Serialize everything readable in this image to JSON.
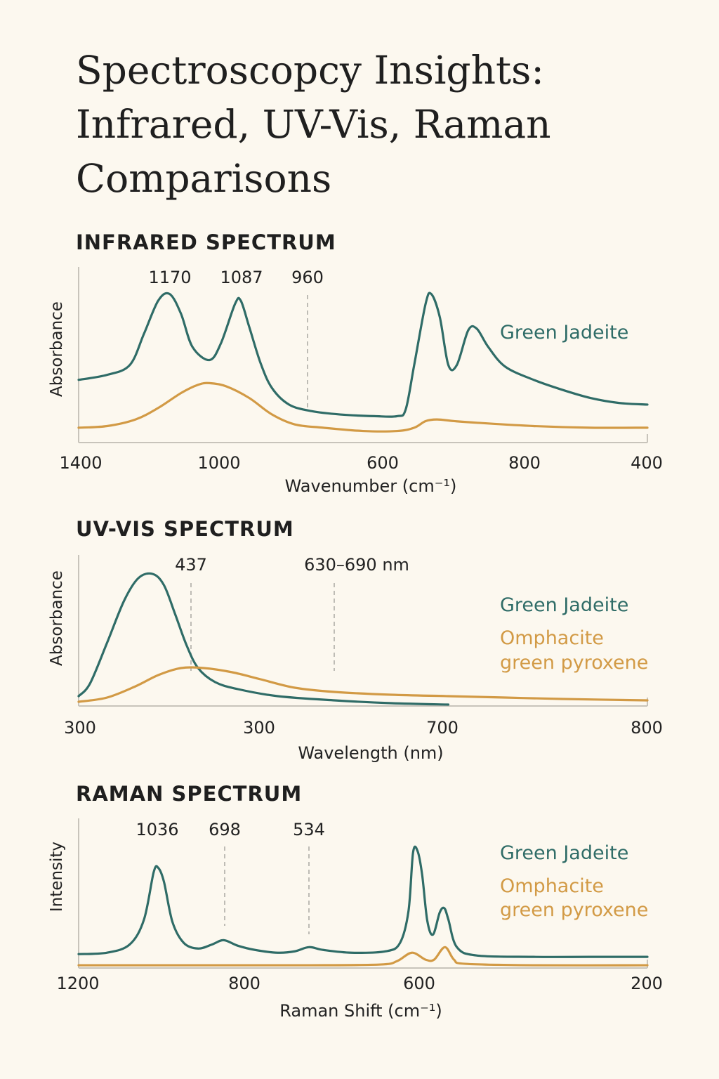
{
  "title_lines": [
    "Spectroscopcy Insights:",
    "Infrared, UV-Vis, Raman",
    "Comparisons"
  ],
  "colors": {
    "background": "#fcf8ef",
    "jadeite": "#2f6c67",
    "omphacite": "#d29a45",
    "axis": "#c8c4bb",
    "guide": "#a9a7a2"
  },
  "chart_data": [
    {
      "type": "line",
      "title": "INFRARED SPECTRUM",
      "xlabel": "Wavenumber (cm⁻¹)",
      "ylabel": "Absorbance",
      "x_tick_labels": [
        "1400",
        "1000",
        "600",
        "800",
        "400"
      ],
      "xlim": [
        0,
        100
      ],
      "ylim": [
        0,
        1
      ],
      "peak_labels": [
        {
          "label": "1170",
          "x": 16.0
        },
        {
          "label": "1087",
          "x": 28.5
        },
        {
          "label": "960",
          "x": 40.5
        }
      ],
      "series": [
        {
          "name": "Green Jadeite",
          "color": "#2f6c67",
          "points": [
            [
              0,
              0.38
            ],
            [
              5,
              0.41
            ],
            [
              9,
              0.47
            ],
            [
              11.5,
              0.66
            ],
            [
              14,
              0.86
            ],
            [
              16,
              0.9
            ],
            [
              18,
              0.78
            ],
            [
              20,
              0.58
            ],
            [
              23,
              0.5
            ],
            [
              25,
              0.6
            ],
            [
              27.5,
              0.84
            ],
            [
              28.5,
              0.86
            ],
            [
              30,
              0.7
            ],
            [
              32,
              0.48
            ],
            [
              34,
              0.33
            ],
            [
              37,
              0.23
            ],
            [
              41,
              0.19
            ],
            [
              46,
              0.17
            ],
            [
              52,
              0.16
            ],
            [
              56,
              0.16
            ],
            [
              57.5,
              0.2
            ],
            [
              59,
              0.47
            ],
            [
              61,
              0.84
            ],
            [
              62,
              0.9
            ],
            [
              63.5,
              0.76
            ],
            [
              65,
              0.47
            ],
            [
              66.5,
              0.47
            ],
            [
              68.5,
              0.68
            ],
            [
              70,
              0.69
            ],
            [
              72,
              0.58
            ],
            [
              75,
              0.46
            ],
            [
              80,
              0.38
            ],
            [
              85,
              0.32
            ],
            [
              90,
              0.27
            ],
            [
              95,
              0.24
            ],
            [
              100,
              0.23
            ]
          ]
        },
        {
          "name": "Omphacite",
          "color": "#d29a45",
          "points": [
            [
              0,
              0.09
            ],
            [
              5,
              0.1
            ],
            [
              10,
              0.14
            ],
            [
              14,
              0.21
            ],
            [
              18,
              0.3
            ],
            [
              21,
              0.35
            ],
            [
              23,
              0.36
            ],
            [
              26,
              0.34
            ],
            [
              30,
              0.27
            ],
            [
              34,
              0.17
            ],
            [
              38,
              0.11
            ],
            [
              43,
              0.09
            ],
            [
              50,
              0.07
            ],
            [
              56,
              0.07
            ],
            [
              59,
              0.09
            ],
            [
              61,
              0.13
            ],
            [
              63,
              0.14
            ],
            [
              66,
              0.13
            ],
            [
              70,
              0.12
            ],
            [
              80,
              0.1
            ],
            [
              90,
              0.09
            ],
            [
              100,
              0.09
            ]
          ]
        }
      ],
      "legend": [
        "Green Jadeite"
      ]
    },
    {
      "type": "line",
      "title": "UV-VIS SPECTRUM",
      "xlabel": "Wavelength (nm)",
      "ylabel": "Absorbance",
      "x_tick_labels": [
        "300",
        "300",
        "700",
        "800"
      ],
      "xlim": [
        0,
        100
      ],
      "ylim": [
        0,
        1
      ],
      "peak_labels": [
        {
          "label": "437",
          "x": 20.0
        },
        {
          "label": "630–690 nm",
          "x": 45.0
        }
      ],
      "series": [
        {
          "name": "Green Jadeite",
          "color": "#2f6c67",
          "points": [
            [
              0,
              0.07
            ],
            [
              2,
              0.16
            ],
            [
              5,
              0.45
            ],
            [
              8,
              0.75
            ],
            [
              10.5,
              0.91
            ],
            [
              13,
              0.94
            ],
            [
              15,
              0.86
            ],
            [
              17,
              0.65
            ],
            [
              19,
              0.43
            ],
            [
              21,
              0.27
            ],
            [
              24,
              0.17
            ],
            [
              28,
              0.12
            ],
            [
              35,
              0.07
            ],
            [
              45,
              0.04
            ],
            [
              55,
              0.02
            ],
            [
              65,
              0.01
            ]
          ]
        },
        {
          "name": "Omphacite",
          "color": "#d29a45",
          "points": [
            [
              0,
              0.03
            ],
            [
              5,
              0.06
            ],
            [
              10,
              0.14
            ],
            [
              14,
              0.22
            ],
            [
              18,
              0.27
            ],
            [
              22,
              0.27
            ],
            [
              27,
              0.24
            ],
            [
              32,
              0.19
            ],
            [
              38,
              0.13
            ],
            [
              45,
              0.1
            ],
            [
              55,
              0.08
            ],
            [
              65,
              0.07
            ],
            [
              75,
              0.06
            ],
            [
              85,
              0.05
            ],
            [
              100,
              0.04
            ]
          ]
        }
      ],
      "legend": [
        "Green Jadeite",
        "Omphacite",
        "green pyroxene"
      ]
    },
    {
      "type": "line",
      "title": "RAMAN SPECTRUM",
      "xlabel": "Raman Shift (cm⁻¹)",
      "ylabel": "Intensity",
      "x_tick_labels": [
        "1200",
        "800",
        "600",
        "200"
      ],
      "xlim": [
        0,
        100
      ],
      "ylim": [
        0,
        1
      ],
      "peak_labels": [
        {
          "label": "1036",
          "x": 13.8
        },
        {
          "label": "698",
          "x": 25.8
        },
        {
          "label": "534",
          "x": 40.7
        }
      ],
      "series": [
        {
          "name": "Green Jadeite",
          "color": "#2f6c67",
          "points": [
            [
              0,
              0.1
            ],
            [
              5,
              0.11
            ],
            [
              9,
              0.17
            ],
            [
              11.5,
              0.35
            ],
            [
              13.2,
              0.69
            ],
            [
              14,
              0.72
            ],
            [
              15,
              0.62
            ],
            [
              16.5,
              0.33
            ],
            [
              18.5,
              0.18
            ],
            [
              21,
              0.14
            ],
            [
              23.5,
              0.17
            ],
            [
              25.5,
              0.2
            ],
            [
              28,
              0.16
            ],
            [
              31,
              0.13
            ],
            [
              35,
              0.11
            ],
            [
              38,
              0.12
            ],
            [
              40.5,
              0.15
            ],
            [
              43,
              0.13
            ],
            [
              48,
              0.11
            ],
            [
              54,
              0.12
            ],
            [
              56.5,
              0.18
            ],
            [
              58,
              0.41
            ],
            [
              58.8,
              0.83
            ],
            [
              59.6,
              0.84
            ],
            [
              60.4,
              0.67
            ],
            [
              61.3,
              0.34
            ],
            [
              62.3,
              0.24
            ],
            [
              63.5,
              0.4
            ],
            [
              64.3,
              0.43
            ],
            [
              65,
              0.35
            ],
            [
              66.5,
              0.15
            ],
            [
              70,
              0.09
            ],
            [
              80,
              0.08
            ],
            [
              90,
              0.08
            ],
            [
              100,
              0.08
            ]
          ]
        },
        {
          "name": "Omphacite",
          "color": "#d29a45",
          "points": [
            [
              0,
              0.02
            ],
            [
              20,
              0.02
            ],
            [
              40,
              0.02
            ],
            [
              53,
              0.025
            ],
            [
              56,
              0.05
            ],
            [
              58.6,
              0.11
            ],
            [
              61,
              0.06
            ],
            [
              62.5,
              0.06
            ],
            [
              64.4,
              0.15
            ],
            [
              66,
              0.06
            ],
            [
              68,
              0.03
            ],
            [
              80,
              0.02
            ],
            [
              100,
              0.02
            ]
          ]
        }
      ],
      "legend": [
        "Green Jadeite",
        "Omphacite",
        "green pyroxene"
      ]
    }
  ]
}
